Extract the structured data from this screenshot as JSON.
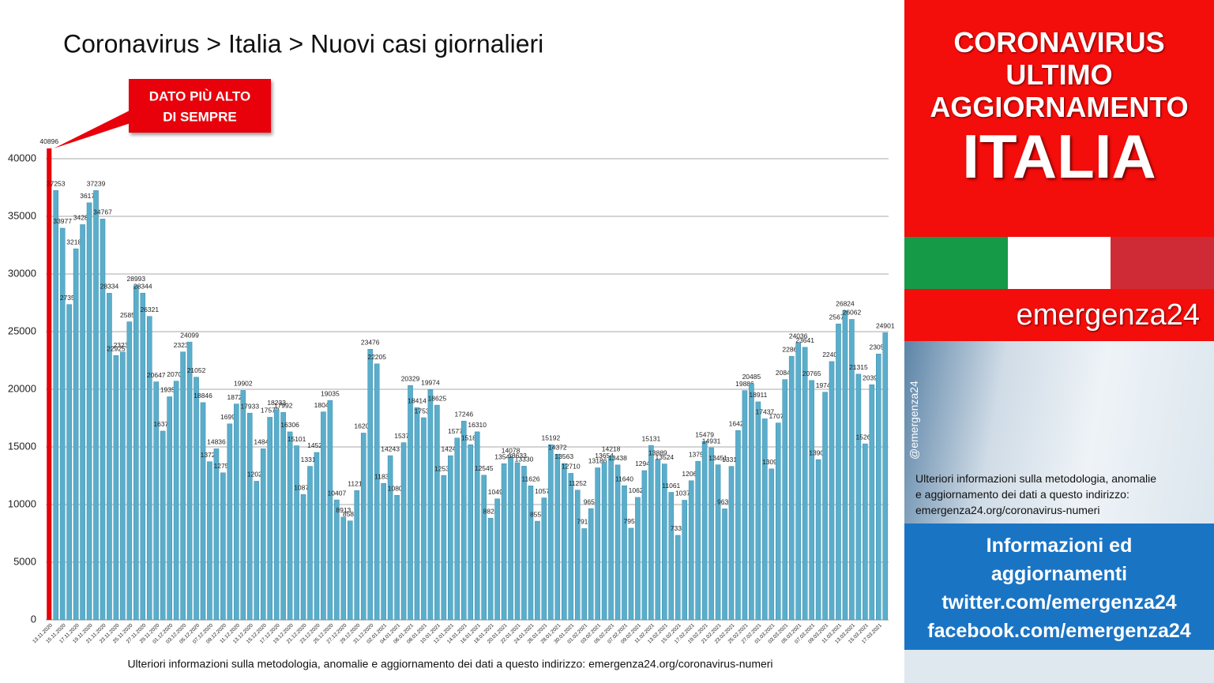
{
  "chart_data": {
    "type": "bar",
    "title": "Coronavirus > Italia > Nuovi casi giornalieri",
    "annotation": [
      "DATO PIÙ ALTO",
      "DI SEMPRE"
    ],
    "note": "Ulteriori informazioni sulla metodologia, anomalie e aggiornamento dei dati a questo indirizzo: emergenza24.org/coronavirus-numeri",
    "color": "#5aaecb",
    "highlight_color": "#e8000b",
    "ylim": [
      0,
      42000
    ],
    "yticks": [
      0,
      5000,
      10000,
      15000,
      20000,
      25000,
      30000,
      35000,
      40000
    ],
    "grid": true,
    "categories": [
      "13.11.2020",
      null,
      "15.11.2020",
      null,
      "17.11.2020",
      null,
      "19.11.2020",
      null,
      "21.11.2020",
      null,
      "23.11.2020",
      null,
      "25.11.2020",
      null,
      "27.11.2020",
      null,
      "29.11.2020",
      null,
      "01.12.2020",
      null,
      "03.12.2020",
      null,
      "05.12.2020",
      null,
      "07.12.2020",
      null,
      "09.12.2020",
      null,
      "11.12.2020",
      null,
      "13.12.2020",
      null,
      "15.12.2020",
      null,
      "17.12.2020",
      null,
      "19.12.2020",
      null,
      "21.12.2020",
      null,
      "23.12.2020",
      null,
      "25.12.2020",
      null,
      "27.12.2020",
      null,
      "29.12.2020",
      null,
      "31.12.2020",
      null,
      "02.01.2021",
      null,
      "04.01.2021",
      null,
      "06.01.2021",
      null,
      "08.01.2021",
      null,
      "10.01.2021",
      null,
      "12.01.2021",
      null,
      "14.01.2021",
      null,
      "16.01.2021",
      null,
      "18.01.2021",
      null,
      "20.01.2021",
      null,
      "22.01.2021",
      null,
      "24.01.2021",
      null,
      "26.01.2021",
      null,
      "28.01.2021",
      null,
      "30.01.2021",
      null,
      "01.02.2021",
      null,
      "03.02.2021",
      null,
      "05.02.2021",
      null,
      "07.02.2021",
      null,
      "09.02.2021",
      null,
      "11.02.2021",
      null,
      "13.02.2021",
      null,
      "15.02.2021",
      null,
      "17.02.2021",
      null,
      "19.02.2021",
      null,
      "21.02.2021",
      null,
      "23.02.2021",
      null,
      "25.02.2021",
      null,
      "27.02.2021",
      null,
      "01.03.2021",
      null,
      "03.03.2021",
      null,
      "05.03.2021",
      null,
      "07.03.2021",
      null,
      "09.03.2021",
      null,
      "11.03.2021",
      null,
      "13.03.2021",
      null,
      "15.03.2021",
      null,
      "17.03.2021",
      null
    ],
    "values": [
      40896,
      37253,
      33977,
      27354,
      32188,
      34283,
      36176,
      37239,
      34767,
      28334,
      22925,
      23231,
      25851,
      28993,
      28344,
      26321,
      20647,
      16374,
      19350,
      20709,
      23236,
      24099,
      21052,
      18846,
      13720,
      14836,
      12755,
      16998,
      18726,
      19902,
      17933,
      12025,
      14840,
      17572,
      18233,
      17992,
      16306,
      15101,
      10870,
      13318,
      14522,
      18040,
      19035,
      10407,
      8913,
      8583,
      11212,
      16202,
      23476,
      22205,
      11831,
      14243,
      10800,
      15370,
      20329,
      18414,
      17533,
      19974,
      18625,
      12532,
      14241,
      15773,
      17246,
      15187,
      16310,
      12545,
      8824,
      10497,
      13548,
      14078,
      13633,
      13330,
      11626,
      8555,
      10578,
      15192,
      14372,
      13563,
      12710,
      11252,
      7916,
      9653,
      13186,
      13654,
      14218,
      13438,
      11640,
      7952,
      10621,
      12947,
      15131,
      13889,
      13524,
      11061,
      7333,
      10378,
      12067,
      13753,
      15479,
      14931,
      13451,
      9630,
      13314,
      16424,
      19886,
      20485,
      18911,
      17437,
      13094,
      17079,
      20844,
      22865,
      24036,
      23641,
      20765,
      13902,
      19749,
      22409,
      25673,
      26824,
      26062,
      21315,
      15267,
      20396,
      23059,
      24901
    ]
  },
  "panel": {
    "headline": [
      "CORONAVIRUS",
      "ULTIMO",
      "AGGIORNAMENTO"
    ],
    "country": "ITALIA",
    "brand": "emergenza24",
    "handle": "@emergenza24",
    "info": [
      "Ulteriori informazioni sulla metodologia, anomalie",
      "e aggiornamento dei dati a questo indirizzo:",
      "emergenza24.org/coronavirus-numeri"
    ],
    "social": [
      "Informazioni ed",
      "aggiornamenti",
      "twitter.com/emergenza24",
      "facebook.com/emergenza24"
    ]
  }
}
